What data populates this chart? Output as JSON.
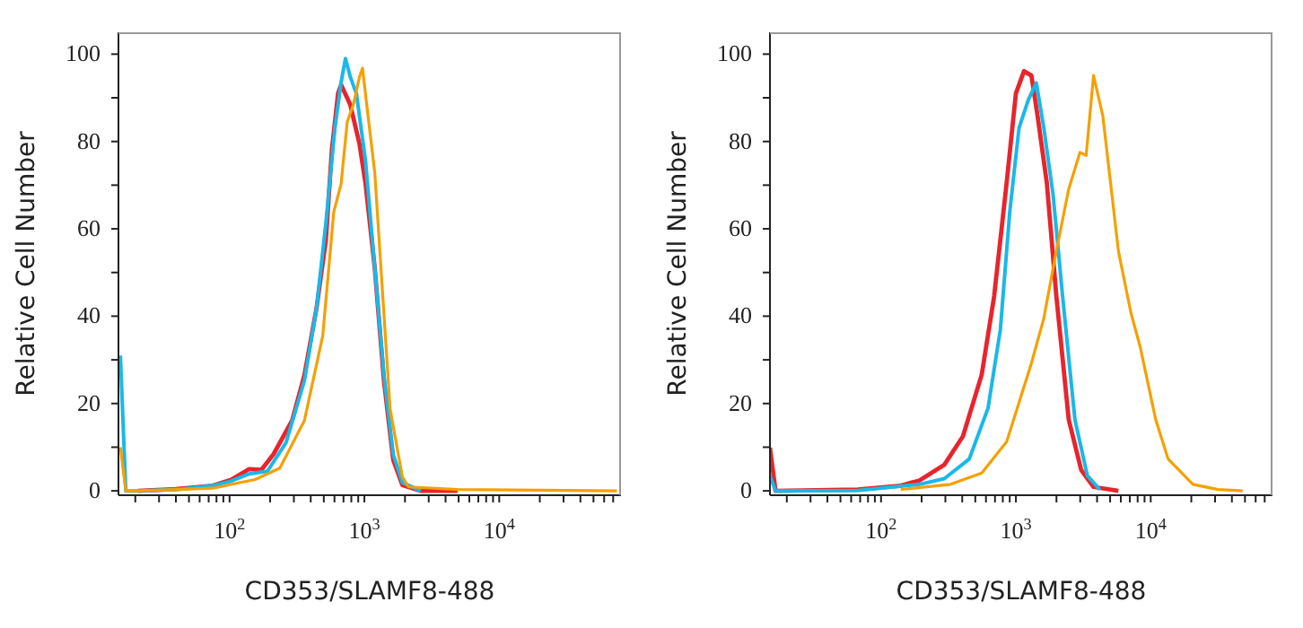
{
  "chart_data": [
    {
      "type": "line",
      "xlabel": "CD353/SLAMF8-488",
      "ylabel": "Relative Cell Number",
      "log": "x",
      "xlim": [
        15,
        80000
      ],
      "ylim": [
        -1,
        105
      ],
      "grid": false,
      "legend": false,
      "xticks": [
        {
          "value": 20,
          "label": null
        },
        {
          "value": 30,
          "label": null
        },
        {
          "value": 40,
          "label": null
        },
        {
          "value": 50,
          "label": null
        },
        {
          "value": 60,
          "label": null
        },
        {
          "value": 70,
          "label": null
        },
        {
          "value": 80,
          "label": null
        },
        {
          "value": 90,
          "label": null
        },
        {
          "value": 100,
          "label": "10$^{2}$"
        },
        {
          "value": 200,
          "label": null
        },
        {
          "value": 300,
          "label": null
        },
        {
          "value": 400,
          "label": null
        },
        {
          "value": 500,
          "label": null
        },
        {
          "value": 600,
          "label": null
        },
        {
          "value": 700,
          "label": null
        },
        {
          "value": 800,
          "label": null
        },
        {
          "value": 900,
          "label": null
        },
        {
          "value": 1000,
          "label": "10$^{3}$"
        },
        {
          "value": 2000,
          "label": null
        },
        {
          "value": 3000,
          "label": null
        },
        {
          "value": 4000,
          "label": null
        },
        {
          "value": 5000,
          "label": null
        },
        {
          "value": 6000,
          "label": null
        },
        {
          "value": 7000,
          "label": null
        },
        {
          "value": 8000,
          "label": null
        },
        {
          "value": 9000,
          "label": null
        },
        {
          "value": 10000,
          "label": "10$^{4}$"
        },
        {
          "value": 20000,
          "label": null
        },
        {
          "value": 30000,
          "label": null
        },
        {
          "value": 40000,
          "label": null
        },
        {
          "value": 50000,
          "label": null
        },
        {
          "value": 60000,
          "label": null
        },
        {
          "value": 70000,
          "label": null
        }
      ],
      "yticks": [
        0,
        {
          "value": 10,
          "label": null
        },
        20,
        {
          "value": 30,
          "label": null
        },
        40,
        {
          "value": 50,
          "label": null
        },
        60,
        {
          "value": 70,
          "label": null
        },
        80,
        {
          "value": 90,
          "label": null
        },
        100
      ],
      "series": [
        {
          "color": "#e8242c",
          "x": [
            21,
            40,
            75,
            102,
            140,
            172,
            212,
            291,
            359,
            442,
            518,
            574,
            638,
            672,
            786,
            920,
            1020,
            1194,
            1397,
            1636,
            1914,
            2618,
            4910
          ],
          "values": [
            0,
            0.4,
            1.2,
            2.5,
            5.0,
            4.8,
            8.4,
            16.1,
            26.5,
            41.9,
            57.4,
            78.1,
            91.0,
            93.0,
            88.4,
            79.4,
            70.3,
            51,
            25.2,
            7.1,
            1.3,
            0,
            0
          ]
        },
        {
          "color": "#1ab8e8",
          "x": [
            15.5,
            17,
            21,
            44,
            75,
            102,
            140,
            191,
            262,
            359,
            442,
            518,
            605,
            672,
            724,
            786,
            873,
            1020,
            1194,
            1397,
            1636,
            1914,
            2618
          ],
          "values": [
            31,
            0,
            0,
            0.4,
            1.2,
            2.2,
            3.9,
            4.5,
            11.0,
            25.2,
            41.9,
            61.3,
            83.2,
            93.5,
            99,
            94.8,
            90.9,
            75.5,
            51,
            26.5,
            8.4,
            1.9,
            0
          ]
        },
        {
          "color": "#f5a000",
          "x": [
            15.5,
            17,
            21,
            75,
            155,
            236,
            359,
            491,
            593,
            672,
            746,
            828,
            920,
            968,
            1077,
            1194,
            1327,
            1552,
            1914,
            2124,
            4910,
            74600
          ],
          "values": [
            10,
            0,
            0,
            0.6,
            2.6,
            5.2,
            16.1,
            35.5,
            63.9,
            70.3,
            84.5,
            88.4,
            94.8,
            96.8,
            84.5,
            72.9,
            51,
            18.7,
            3.2,
            0.9,
            0.3,
            0
          ]
        }
      ]
    },
    {
      "type": "line",
      "xlabel": "CD353/SLAMF8-488",
      "ylabel": "Relative Cell Number",
      "log": "x",
      "xlim": [
        15,
        80000
      ],
      "ylim": [
        -1,
        105
      ],
      "grid": false,
      "legend": false,
      "xticks": [
        {
          "value": 20,
          "label": null
        },
        {
          "value": 30,
          "label": null
        },
        {
          "value": 40,
          "label": null
        },
        {
          "value": 50,
          "label": null
        },
        {
          "value": 60,
          "label": null
        },
        {
          "value": 70,
          "label": null
        },
        {
          "value": 80,
          "label": null
        },
        {
          "value": 90,
          "label": null
        },
        {
          "value": 100,
          "label": "10$^{2}$"
        },
        {
          "value": 200,
          "label": null
        },
        {
          "value": 300,
          "label": null
        },
        {
          "value": 400,
          "label": null
        },
        {
          "value": 500,
          "label": null
        },
        {
          "value": 600,
          "label": null
        },
        {
          "value": 700,
          "label": null
        },
        {
          "value": 800,
          "label": null
        },
        {
          "value": 900,
          "label": null
        },
        {
          "value": 1000,
          "label": "10$^{3}$"
        },
        {
          "value": 2000,
          "label": null
        },
        {
          "value": 3000,
          "label": null
        },
        {
          "value": 4000,
          "label": null
        },
        {
          "value": 5000,
          "label": null
        },
        {
          "value": 6000,
          "label": null
        },
        {
          "value": 7000,
          "label": null
        },
        {
          "value": 8000,
          "label": null
        },
        {
          "value": 9000,
          "label": null
        },
        {
          "value": 10000,
          "label": "10$^{4}$"
        },
        {
          "value": 20000,
          "label": null
        },
        {
          "value": 30000,
          "label": null
        },
        {
          "value": 40000,
          "label": null
        },
        {
          "value": 50000,
          "label": null
        },
        {
          "value": 60000,
          "label": null
        },
        {
          "value": 70000,
          "label": null
        }
      ],
      "yticks": [
        0,
        {
          "value": 10,
          "label": null
        },
        20,
        {
          "value": 30,
          "label": null
        },
        40,
        {
          "value": 50,
          "label": null
        },
        60,
        {
          "value": 70,
          "label": null
        },
        80,
        {
          "value": 90,
          "label": null
        },
        100
      ],
      "series": [
        {
          "color": "#e8242c",
          "x": [
            15,
            16.5,
            67,
            140,
            193,
            295,
            405,
            558,
            690,
            853,
            1000,
            1148,
            1303,
            1449,
            1698,
            1994,
            2465,
            3049,
            3767,
            5760
          ],
          "values": [
            9.9,
            0,
            0.3,
            1.2,
            2.4,
            6.0,
            12.5,
            26.6,
            44.6,
            70.4,
            91.0,
            96.1,
            95.1,
            85.8,
            70.4,
            44.7,
            16.3,
            4.8,
            0.9,
            0
          ]
        },
        {
          "color": "#1ab8e8",
          "x": [
            15,
            16.5,
            67,
            193,
            295,
            451,
            621,
            767,
            900,
            1055,
            1236,
            1419,
            1611,
            1888,
            2218,
            2741,
            3388,
            4186
          ],
          "values": [
            3.5,
            0,
            0.1,
            1.5,
            2.8,
            7.3,
            18.9,
            36.9,
            63.8,
            83.1,
            89.5,
            93.4,
            83.1,
            67.8,
            44.7,
            16.3,
            3.5,
            0.3
          ]
        },
        {
          "color": "#f5a000",
          "x": [
            140,
            328,
            558,
            853,
            1055,
            1303,
            1611,
            1994,
            2465,
            2985,
            3319,
            3767,
            4416,
            5760,
            7125,
            8350,
            10890,
            13460,
            20560,
            31470,
            48100
          ],
          "values": [
            0.3,
            1.5,
            4.1,
            11.2,
            20.2,
            29.2,
            39.5,
            54.9,
            69.1,
            77.5,
            76.8,
            95.1,
            85.8,
            54.9,
            40.8,
            33.0,
            16.3,
            7.3,
            1.5,
            0.3,
            0
          ]
        }
      ]
    }
  ]
}
